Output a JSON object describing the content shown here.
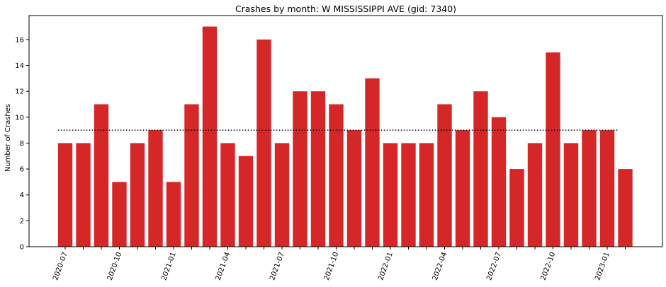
{
  "chart_data": {
    "type": "bar",
    "title": "Crashes by month: W MISSISSIPPI AVE (gid: 7340)",
    "xlabel": "",
    "ylabel": "Number of Crashes",
    "categories": [
      "2020-07",
      "2020-08",
      "2020-09",
      "2020-10",
      "2020-11",
      "2020-12",
      "2021-01",
      "2021-02",
      "2021-03",
      "2021-04",
      "2021-05",
      "2021-06",
      "2021-07",
      "2021-08",
      "2021-09",
      "2021-10",
      "2021-11",
      "2021-12",
      "2022-01",
      "2022-02",
      "2022-03",
      "2022-04",
      "2022-05",
      "2022-06",
      "2022-07",
      "2022-08",
      "2022-09",
      "2022-10",
      "2022-11",
      "2022-12",
      "2023-01",
      "2023-02"
    ],
    "x_tick_labels": [
      "2020-07",
      "2020-10",
      "2021-01",
      "2021-04",
      "2021-07",
      "2021-10",
      "2022-01",
      "2022-04",
      "2022-07",
      "2022-10",
      "2023-01"
    ],
    "values": [
      8,
      8,
      11,
      5,
      8,
      9,
      5,
      11,
      17,
      8,
      7,
      16,
      8,
      12,
      12,
      11,
      9,
      13,
      8,
      8,
      8,
      11,
      9,
      12,
      10,
      6,
      8,
      15,
      8,
      9,
      9,
      6
    ],
    "mean_line": 9,
    "y_ticks": [
      0,
      2,
      4,
      6,
      8,
      10,
      12,
      14,
      16
    ],
    "ylim": [
      0,
      17.85
    ],
    "bar_color": "#d62728",
    "mean_line_color": "#000000",
    "mean_line_style": "dotted",
    "grid": false,
    "legend": "none"
  }
}
